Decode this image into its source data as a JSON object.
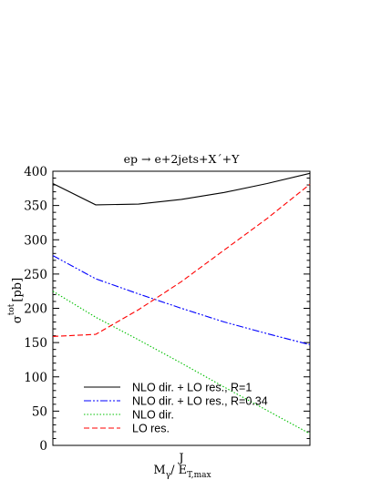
{
  "chart_data": {
    "type": "line",
    "title": "ep → e+2jets+X´+Y",
    "ylabel_main": "σ",
    "ylabel_sup": "tot",
    "ylabel_unit": "[pb]",
    "xlabel_main": "M",
    "xlabel_sub1": "γ",
    "xlabel_sep": "/ E",
    "xlabel_sub2": "T,max",
    "xlabel_sup": "J",
    "x": [
      0.0,
      0.5,
      1.0,
      1.5,
      2.0,
      2.5,
      3.0
    ],
    "xlim": [
      0,
      3
    ],
    "ylim": [
      0,
      400
    ],
    "y_ticks": [
      0,
      50,
      100,
      150,
      200,
      250,
      300,
      350,
      400
    ],
    "legend_position": "bottom-left",
    "series": [
      {
        "name": "NLO dir. + LO res., R=1",
        "color": "#000000",
        "dash": "",
        "values": [
          382,
          351,
          352,
          359,
          369,
          382,
          397
        ]
      },
      {
        "name": "NLO dir. + LO res., R=0.34",
        "color": "#0000ff",
        "dash": "8 2 2 2 2 2",
        "values": [
          277,
          243,
          221,
          200,
          180,
          163,
          147
        ]
      },
      {
        "name": "NLO dir.",
        "color": "#00c000",
        "dash": "1.5 2",
        "values": [
          225,
          187,
          154,
          120,
          85,
          51,
          17
        ]
      },
      {
        "name": "LO res.",
        "color": "#ff0000",
        "dash": "6 3",
        "values": [
          159,
          162,
          198,
          239,
          285,
          331,
          381
        ]
      }
    ],
    "legend_labels": [
      "NLO dir. + LO res., R=1",
      "NLO dir. + LO res., R=0.34",
      "NLO dir.",
      "   LO res."
    ]
  }
}
